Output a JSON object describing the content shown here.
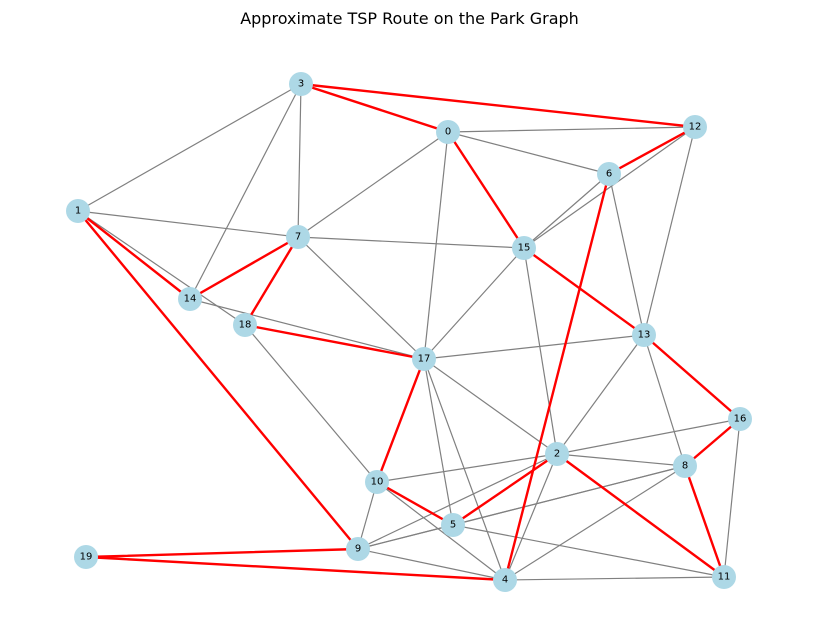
{
  "title": "Approximate TSP Route on the Park Graph",
  "colors": {
    "node_fill": "#add8e6",
    "edge": "#808080",
    "route": "#ff0000",
    "label": "#000000"
  },
  "graph": {
    "nodes": [
      "0",
      "1",
      "2",
      "3",
      "4",
      "5",
      "6",
      "7",
      "8",
      "9",
      "10",
      "11",
      "12",
      "13",
      "14",
      "15",
      "16",
      "17",
      "18",
      "19"
    ],
    "edges": [
      [
        "3",
        "1"
      ],
      [
        "3",
        "7"
      ],
      [
        "3",
        "14"
      ],
      [
        "0",
        "12"
      ],
      [
        "0",
        "6"
      ],
      [
        "0",
        "7"
      ],
      [
        "0",
        "17"
      ],
      [
        "12",
        "15"
      ],
      [
        "12",
        "13"
      ],
      [
        "6",
        "15"
      ],
      [
        "6",
        "13"
      ],
      [
        "1",
        "7"
      ],
      [
        "1",
        "18"
      ],
      [
        "7",
        "15"
      ],
      [
        "7",
        "17"
      ],
      [
        "14",
        "17"
      ],
      [
        "15",
        "17"
      ],
      [
        "15",
        "2"
      ],
      [
        "13",
        "17"
      ],
      [
        "13",
        "2"
      ],
      [
        "13",
        "8"
      ],
      [
        "18",
        "10"
      ],
      [
        "17",
        "2"
      ],
      [
        "17",
        "5"
      ],
      [
        "17",
        "4"
      ],
      [
        "16",
        "2"
      ],
      [
        "16",
        "11"
      ],
      [
        "2",
        "10"
      ],
      [
        "2",
        "8"
      ],
      [
        "2",
        "9"
      ],
      [
        "2",
        "4"
      ],
      [
        "8",
        "5"
      ],
      [
        "8",
        "9"
      ],
      [
        "8",
        "4"
      ],
      [
        "10",
        "9"
      ],
      [
        "10",
        "4"
      ],
      [
        "5",
        "9"
      ],
      [
        "5",
        "11"
      ],
      [
        "9",
        "4"
      ],
      [
        "4",
        "11"
      ]
    ],
    "route": [
      [
        "3",
        "12"
      ],
      [
        "12",
        "6"
      ],
      [
        "6",
        "4"
      ],
      [
        "4",
        "19"
      ],
      [
        "19",
        "9"
      ],
      [
        "9",
        "1"
      ],
      [
        "1",
        "14"
      ],
      [
        "14",
        "7"
      ],
      [
        "7",
        "18"
      ],
      [
        "18",
        "17"
      ],
      [
        "17",
        "10"
      ],
      [
        "10",
        "5"
      ],
      [
        "5",
        "2"
      ],
      [
        "2",
        "11"
      ],
      [
        "11",
        "8"
      ],
      [
        "8",
        "16"
      ],
      [
        "16",
        "13"
      ],
      [
        "13",
        "15"
      ],
      [
        "15",
        "0"
      ],
      [
        "0",
        "3"
      ]
    ]
  }
}
